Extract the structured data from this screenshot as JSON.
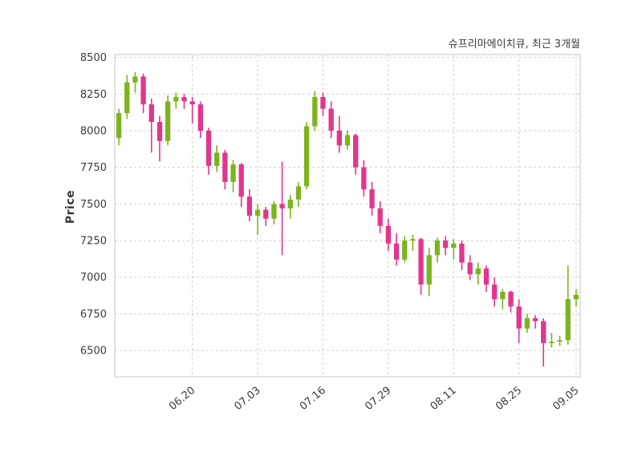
{
  "chart_data": {
    "type": "candlestick",
    "title": "슈프리마에이치큐, 최근 3개월",
    "ylabel": "Price",
    "ylim": [
      6320,
      8520
    ],
    "grid": true,
    "up_color": "#7db41e",
    "down_color": "#e2368d",
    "grid_color": "#cfcfcf",
    "border_color": "#c6c6c6",
    "text_color": "#3a3a3a",
    "y_ticks": [
      6500,
      6750,
      7000,
      7250,
      7500,
      7750,
      8000,
      8250,
      8500
    ],
    "x_tick_labels": [
      "06.20",
      "07.03",
      "07.16",
      "07.29",
      "08.11",
      "08.25",
      "09.05"
    ],
    "x_tick_indices": [
      9,
      17,
      25,
      33,
      41,
      49,
      56
    ],
    "candles": [
      [
        7950,
        8150,
        7900,
        8120
      ],
      [
        8120,
        8380,
        8080,
        8330
      ],
      [
        8330,
        8400,
        8260,
        8370
      ],
      [
        8370,
        8390,
        8120,
        8180
      ],
      [
        8180,
        8220,
        7850,
        8060
      ],
      [
        8060,
        8100,
        7790,
        7930
      ],
      [
        7930,
        8240,
        7900,
        8200
      ],
      [
        8200,
        8260,
        8150,
        8230
      ],
      [
        8230,
        8250,
        8150,
        8200
      ],
      [
        8200,
        8230,
        8050,
        8180
      ],
      [
        8180,
        8200,
        7950,
        8000
      ],
      [
        8000,
        8020,
        7700,
        7760
      ],
      [
        7760,
        7900,
        7720,
        7850
      ],
      [
        7850,
        7870,
        7600,
        7650
      ],
      [
        7650,
        7800,
        7580,
        7770
      ],
      [
        7770,
        7780,
        7480,
        7550
      ],
      [
        7550,
        7600,
        7380,
        7420
      ],
      [
        7420,
        7500,
        7290,
        7460
      ],
      [
        7460,
        7480,
        7350,
        7400
      ],
      [
        7400,
        7520,
        7360,
        7500
      ],
      [
        7500,
        7790,
        7150,
        7470
      ],
      [
        7470,
        7560,
        7400,
        7530
      ],
      [
        7530,
        7650,
        7480,
        7620
      ],
      [
        7620,
        8060,
        7600,
        8030
      ],
      [
        8030,
        8270,
        8000,
        8230
      ],
      [
        8230,
        8260,
        8100,
        8150
      ],
      [
        8150,
        8200,
        7950,
        8000
      ],
      [
        8000,
        8100,
        7850,
        7900
      ],
      [
        7900,
        8000,
        7870,
        7970
      ],
      [
        7970,
        7980,
        7700,
        7750
      ],
      [
        7750,
        7800,
        7550,
        7600
      ],
      [
        7600,
        7650,
        7420,
        7470
      ],
      [
        7470,
        7520,
        7300,
        7350
      ],
      [
        7350,
        7400,
        7180,
        7230
      ],
      [
        7230,
        7300,
        7080,
        7120
      ],
      [
        7120,
        7280,
        7100,
        7250
      ],
      [
        7250,
        7290,
        7180,
        7260
      ],
      [
        7260,
        7270,
        6880,
        6950
      ],
      [
        6950,
        7200,
        6870,
        7150
      ],
      [
        7150,
        7270,
        7100,
        7250
      ],
      [
        7250,
        7280,
        7150,
        7200
      ],
      [
        7200,
        7260,
        7120,
        7230
      ],
      [
        7230,
        7250,
        7050,
        7100
      ],
      [
        7100,
        7150,
        6980,
        7020
      ],
      [
        7020,
        7100,
        6950,
        7060
      ],
      [
        7060,
        7080,
        6900,
        6950
      ],
      [
        6950,
        7000,
        6800,
        6850
      ],
      [
        6850,
        6920,
        6780,
        6900
      ],
      [
        6900,
        6910,
        6760,
        6800
      ],
      [
        6800,
        6850,
        6550,
        6650
      ],
      [
        6650,
        6750,
        6620,
        6720
      ],
      [
        6720,
        6740,
        6650,
        6700
      ],
      [
        6700,
        6720,
        6390,
        6550
      ],
      [
        6550,
        6620,
        6520,
        6560
      ],
      [
        6560,
        6600,
        6530,
        6570
      ],
      [
        6570,
        7080,
        6540,
        6850
      ],
      [
        6850,
        6920,
        6800,
        6880
      ]
    ]
  }
}
